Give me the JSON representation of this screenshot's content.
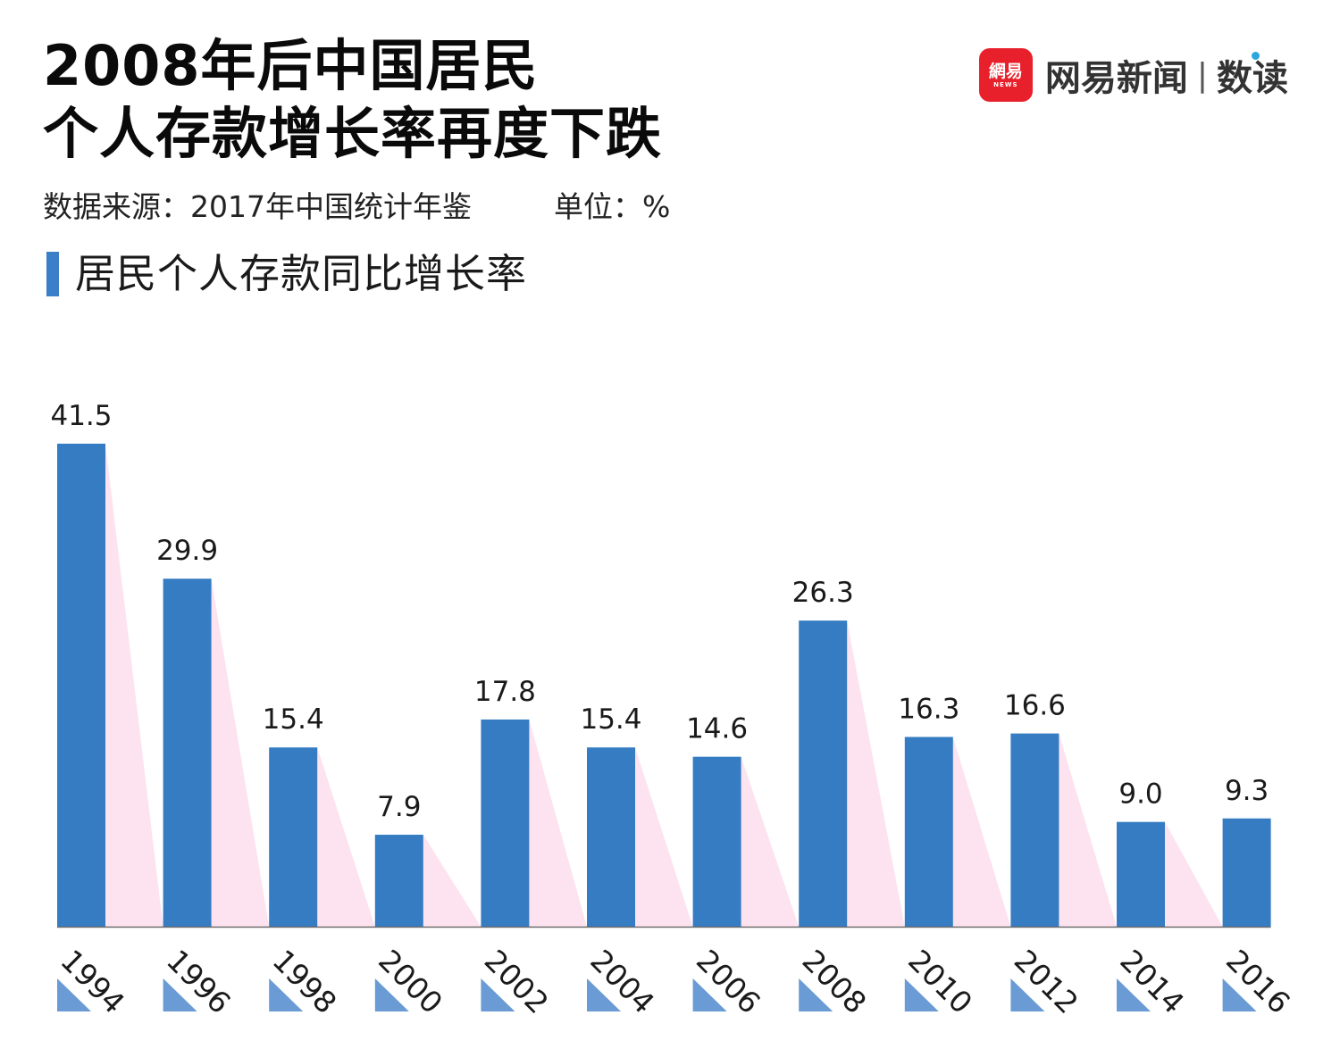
{
  "header": {
    "title_line1": "2008年后中国居民",
    "title_line2": "个人存款增长率再度下跌",
    "source": "数据来源：2017年中国统计年鉴",
    "unit": "单位：%",
    "subtitle": "居民个人存款同比增长率"
  },
  "brand": {
    "logo_text": "網易",
    "logo_small": "NEWS",
    "name": "网易新闻",
    "separator": "|",
    "sub": "数读"
  },
  "colors": {
    "bar": "#357CC2",
    "shadow": "#FDE3EF",
    "year_triangle": "#6A9BD4",
    "accent": "#3A7FC7",
    "brand_red": "#E8202B",
    "dot_blue": "#2DA6E0"
  },
  "chart_data": {
    "type": "bar",
    "categories": [
      "1994",
      "1996",
      "1998",
      "2000",
      "2002",
      "2004",
      "2006",
      "2008",
      "2010",
      "2012",
      "2014",
      "2016"
    ],
    "values": [
      41.5,
      29.9,
      15.4,
      7.9,
      17.8,
      15.4,
      14.6,
      26.3,
      16.3,
      16.6,
      9.0,
      9.3
    ],
    "labels": [
      "41.5",
      "29.9",
      "15.4",
      "7.9",
      "17.8",
      "15.4",
      "14.6",
      "26.3",
      "16.3",
      "16.6",
      "9.0",
      "9.3"
    ],
    "title": "居民个人存款同比增长率",
    "xlabel": "",
    "ylabel": "",
    "unit": "%",
    "ylim": [
      0,
      41.5
    ],
    "grid": false,
    "legend": "none"
  }
}
